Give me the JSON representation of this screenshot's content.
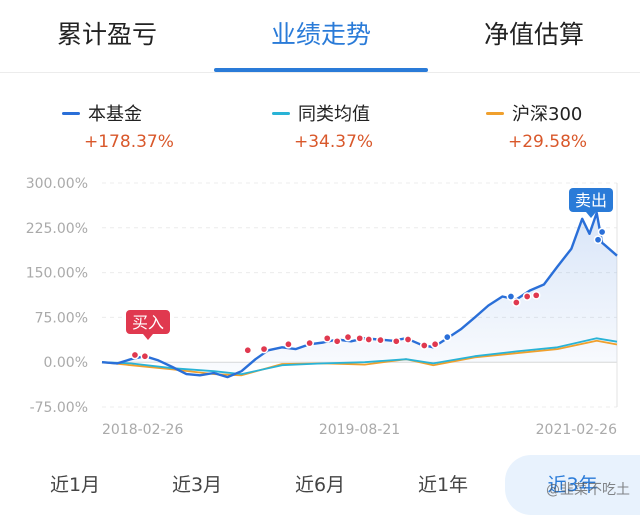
{
  "tabs": [
    {
      "label": "累计盈亏"
    },
    {
      "label": "业绩走势"
    },
    {
      "label": "净值估算"
    }
  ],
  "legend": [
    {
      "name": "本基金",
      "value": "+178.37%",
      "color": "#2a6fd8"
    },
    {
      "name": "同类均值",
      "value": "+34.37%",
      "color": "#29b3d6"
    },
    {
      "name": "沪深300",
      "value": "+29.58%",
      "color": "#f0a02d"
    }
  ],
  "chart_data": {
    "type": "line",
    "y_ticks": [
      "300.00%",
      "225.00%",
      "150.00%",
      "75.00%",
      "0.00%",
      "-75.00%"
    ],
    "ylim": [
      -75,
      300
    ],
    "x_ticks": [
      "2018-02-26",
      "2019-08-21",
      "2021-02-26"
    ],
    "x_range": [
      "2018-02-26",
      "2021-04-12"
    ],
    "grid": "horizontal dashed",
    "series": [
      {
        "name": "本基金",
        "color": "#2a6fd8",
        "x": [
          "2018-02-26",
          "2018-04-01",
          "2018-05-01",
          "2018-06-01",
          "2018-07-01",
          "2018-08-01",
          "2018-09-01",
          "2018-10-01",
          "2018-11-01",
          "2018-12-01",
          "2019-01-01",
          "2019-02-01",
          "2019-03-01",
          "2019-04-01",
          "2019-05-01",
          "2019-06-01",
          "2019-07-01",
          "2019-08-01",
          "2019-09-01",
          "2019-10-01",
          "2019-11-01",
          "2019-12-01",
          "2020-01-01",
          "2020-02-01",
          "2020-03-01",
          "2020-04-01",
          "2020-05-01",
          "2020-06-01",
          "2020-07-01",
          "2020-08-01",
          "2020-09-01",
          "2020-10-01",
          "2020-11-01",
          "2020-12-01",
          "2021-01-01",
          "2021-01-25",
          "2021-02-10",
          "2021-02-26",
          "2021-03-10",
          "2021-04-12"
        ],
        "values": [
          0,
          -2,
          5,
          10,
          3,
          -8,
          -20,
          -22,
          -18,
          -25,
          -15,
          5,
          20,
          25,
          22,
          30,
          33,
          38,
          35,
          40,
          38,
          36,
          40,
          30,
          25,
          40,
          55,
          75,
          95,
          110,
          105,
          120,
          130,
          160,
          190,
          240,
          215,
          250,
          200,
          178.37
        ]
      },
      {
        "name": "同类均值",
        "color": "#29b3d6",
        "x": [
          "2018-02-26",
          "2018-05-01",
          "2018-08-01",
          "2018-11-01",
          "2019-01-01",
          "2019-04-01",
          "2019-07-01",
          "2019-10-01",
          "2020-01-01",
          "2020-03-01",
          "2020-06-01",
          "2020-09-01",
          "2020-12-01",
          "2021-02-26",
          "2021-04-12"
        ],
        "values": [
          0,
          -2,
          -10,
          -15,
          -20,
          -5,
          -2,
          0,
          5,
          -2,
          10,
          18,
          25,
          40,
          34.37
        ]
      },
      {
        "name": "沪深300",
        "color": "#f0a02d",
        "x": [
          "2018-02-26",
          "2018-05-01",
          "2018-08-01",
          "2018-11-01",
          "2019-01-01",
          "2019-04-01",
          "2019-07-01",
          "2019-10-01",
          "2020-01-01",
          "2020-03-01",
          "2020-06-01",
          "2020-09-01",
          "2020-12-01",
          "2021-02-26",
          "2021-04-12"
        ],
        "values": [
          0,
          -5,
          -12,
          -20,
          -22,
          -3,
          -2,
          -4,
          5,
          -5,
          8,
          15,
          22,
          36,
          29.58
        ]
      }
    ],
    "annotations": [
      {
        "label": "买入",
        "x": "2018-05-01",
        "color": "#e0394f"
      },
      {
        "label": "卖出",
        "x": "2021-02-26",
        "color": "#2a7bd8"
      }
    ],
    "trade_marks": [
      {
        "x": "2018-05-10",
        "y": 12,
        "color": "#e0394f"
      },
      {
        "x": "2018-06-01",
        "y": 10,
        "color": "#e0394f"
      },
      {
        "x": "2019-01-15",
        "y": 20,
        "color": "#e0394f"
      },
      {
        "x": "2019-02-20",
        "y": 22,
        "color": "#e0394f"
      },
      {
        "x": "2019-04-15",
        "y": 30,
        "color": "#e0394f"
      },
      {
        "x": "2019-06-01",
        "y": 32,
        "color": "#e0394f"
      },
      {
        "x": "2019-07-10",
        "y": 40,
        "color": "#e0394f"
      },
      {
        "x": "2019-08-01",
        "y": 35,
        "color": "#e0394f"
      },
      {
        "x": "2019-08-25",
        "y": 42,
        "color": "#e0394f"
      },
      {
        "x": "2019-09-20",
        "y": 40,
        "color": "#e0394f"
      },
      {
        "x": "2019-10-10",
        "y": 38,
        "color": "#e0394f"
      },
      {
        "x": "2019-11-05",
        "y": 37,
        "color": "#e0394f"
      },
      {
        "x": "2019-12-10",
        "y": 35,
        "color": "#e0394f"
      },
      {
        "x": "2020-01-05",
        "y": 38,
        "color": "#e0394f"
      },
      {
        "x": "2020-02-10",
        "y": 28,
        "color": "#e0394f"
      },
      {
        "x": "2020-03-05",
        "y": 30,
        "color": "#e0394f"
      },
      {
        "x": "2020-04-01",
        "y": 42,
        "color": "#2a6fd8"
      },
      {
        "x": "2020-08-20",
        "y": 110,
        "color": "#2a6fd8"
      },
      {
        "x": "2020-09-01",
        "y": 100,
        "color": "#e0394f"
      },
      {
        "x": "2020-09-25",
        "y": 110,
        "color": "#e0394f"
      },
      {
        "x": "2020-10-15",
        "y": 112,
        "color": "#e0394f"
      },
      {
        "x": "2021-03-01",
        "y": 205,
        "color": "#2a6fd8"
      },
      {
        "x": "2021-03-10",
        "y": 218,
        "color": "#2a6fd8"
      }
    ]
  },
  "ranges": [
    {
      "label": "近1月"
    },
    {
      "label": "近3月"
    },
    {
      "label": "近6月"
    },
    {
      "label": "近1年"
    },
    {
      "label": "近3年"
    }
  ],
  "watermark": "@韭菜不吃土"
}
